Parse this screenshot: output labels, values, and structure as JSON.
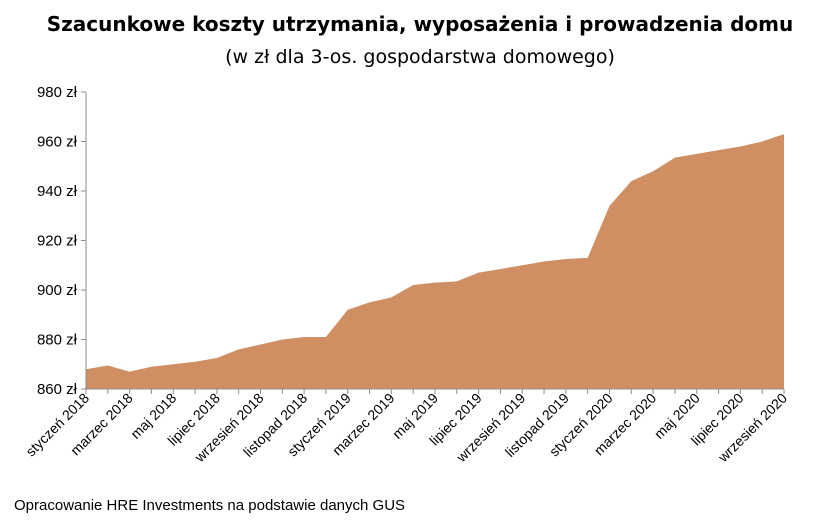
{
  "chart_data": {
    "type": "area",
    "title": "Szacunkowe koszty utrzymania, wyposażenia i prowadzenia domu",
    "subtitle": "(w zł dla 3-os. gospodarstwa domowego)",
    "ylim": [
      860,
      980
    ],
    "y_ticks": [
      "980 zł",
      "960 zł",
      "940 zł",
      "920 zł",
      "900 zł",
      "880 zł",
      "860 zł"
    ],
    "y_tick_values": [
      980,
      960,
      940,
      920,
      900,
      880,
      860
    ],
    "x_tick_labels": [
      "styczeń 2018",
      "marzec 2018",
      "maj 2018",
      "lipiec 2018",
      "wrzesień 2018",
      "listopad 2018",
      "styczeń 2019",
      "marzec 2019",
      "maj 2019",
      "lipiec 2019",
      "wrzesień 2019",
      "listopad 2019",
      "styczeń 2020",
      "marzec 2020",
      "maj 2020",
      "lipiec 2020",
      "wrzesień 2020"
    ],
    "x": [
      "styczeń 2018",
      "luty 2018",
      "marzec 2018",
      "kwiecień 2018",
      "maj 2018",
      "czerwiec 2018",
      "lipiec 2018",
      "sierpień 2018",
      "wrzesień 2018",
      "październik 2018",
      "listopad 2018",
      "grudzień 2018",
      "styczeń 2019",
      "luty 2019",
      "marzec 2019",
      "kwiecień 2019",
      "maj 2019",
      "czerwiec 2019",
      "lipiec 2019",
      "sierpień 2019",
      "wrzesień 2019",
      "październik 2019",
      "listopad 2019",
      "grudzień 2019",
      "styczeń 2020",
      "luty 2020",
      "marzec 2020",
      "kwiecień 2020",
      "maj 2020",
      "czerwiec 2020",
      "lipiec 2020",
      "sierpień 2020",
      "wrzesień 2020"
    ],
    "values": [
      868,
      869.5,
      867,
      869,
      870,
      871,
      872.5,
      876,
      878,
      880,
      881,
      881,
      892,
      895,
      897,
      902,
      903,
      903.5,
      907,
      908.5,
      910,
      911.5,
      912.5,
      913,
      934,
      944,
      948,
      953.5,
      955,
      956.5,
      958,
      960,
      963
    ],
    "area_color": "#CF8F62",
    "grid": false
  },
  "footnote": "Opracowanie HRE Investments na podstawie danych GUS"
}
